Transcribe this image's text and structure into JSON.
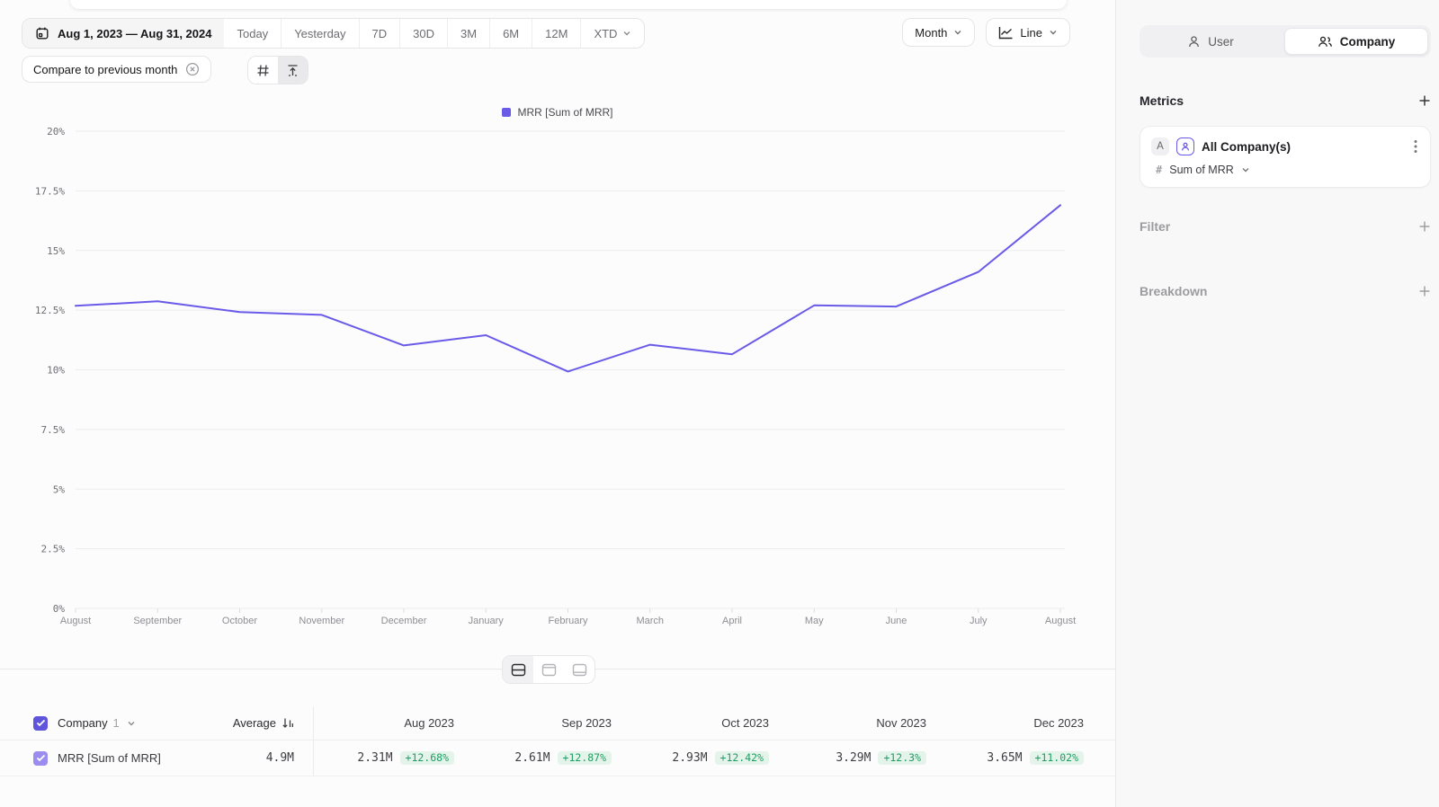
{
  "colors": {
    "accent": "#6a5ae8",
    "accent_light": "#9b8df0",
    "green_text": "#1f9d62",
    "green_bg": "#e4f4eb"
  },
  "toolbar": {
    "date_range": "Aug 1, 2023 — Aug 31, 2024",
    "presets": [
      "Today",
      "Yesterday",
      "7D",
      "30D",
      "3M",
      "6M",
      "12M"
    ],
    "xtd_label": "XTD",
    "compare_chip": "Compare to previous month",
    "granularity": "Month",
    "chart_type": "Line"
  },
  "chart_data": {
    "type": "line",
    "title": "",
    "legend_entries": [
      "MRR [Sum of MRR]"
    ],
    "x": [
      "August",
      "September",
      "October",
      "November",
      "December",
      "January",
      "February",
      "March",
      "April",
      "May",
      "June",
      "July",
      "August"
    ],
    "series": [
      {
        "name": "MRR [Sum of MRR]",
        "values": [
          12.68,
          12.87,
          12.42,
          12.3,
          11.02,
          11.45,
          9.93,
          11.05,
          10.65,
          12.7,
          12.65,
          14.1,
          16.9
        ]
      }
    ],
    "ylim": [
      0,
      20
    ],
    "yticks": [
      0,
      2.5,
      5,
      7.5,
      10,
      12.5,
      15,
      17.5,
      20
    ],
    "ytick_labels": [
      "0%",
      "2.5%",
      "5%",
      "7.5%",
      "10%",
      "12.5%",
      "15%",
      "17.5%",
      "20%"
    ],
    "grid": "horizontal",
    "legend_position": "top-center"
  },
  "table": {
    "group_label": "Company",
    "group_count": "1",
    "average_label": "Average",
    "columns": [
      "Aug 2023",
      "Sep 2023",
      "Oct 2023",
      "Nov 2023",
      "Dec 2023"
    ],
    "rows": [
      {
        "label": "MRR [Sum of MRR]",
        "average": "4.9M",
        "cells": [
          {
            "value": "2.31M",
            "delta": "+12.68%"
          },
          {
            "value": "2.61M",
            "delta": "+12.87%"
          },
          {
            "value": "2.93M",
            "delta": "+12.42%"
          },
          {
            "value": "3.29M",
            "delta": "+12.3%"
          },
          {
            "value": "3.65M",
            "delta": "+11.02%"
          }
        ]
      }
    ]
  },
  "sidebar": {
    "view_toggle": {
      "user_label": "User",
      "company_label": "Company",
      "selected": "Company"
    },
    "metrics_title": "Metrics",
    "metric_card": {
      "letter_badge": "A",
      "name": "All Company(s)",
      "aggregation_prefix": "#",
      "aggregation": "Sum of MRR"
    },
    "filter_label": "Filter",
    "breakdown_label": "Breakdown"
  }
}
